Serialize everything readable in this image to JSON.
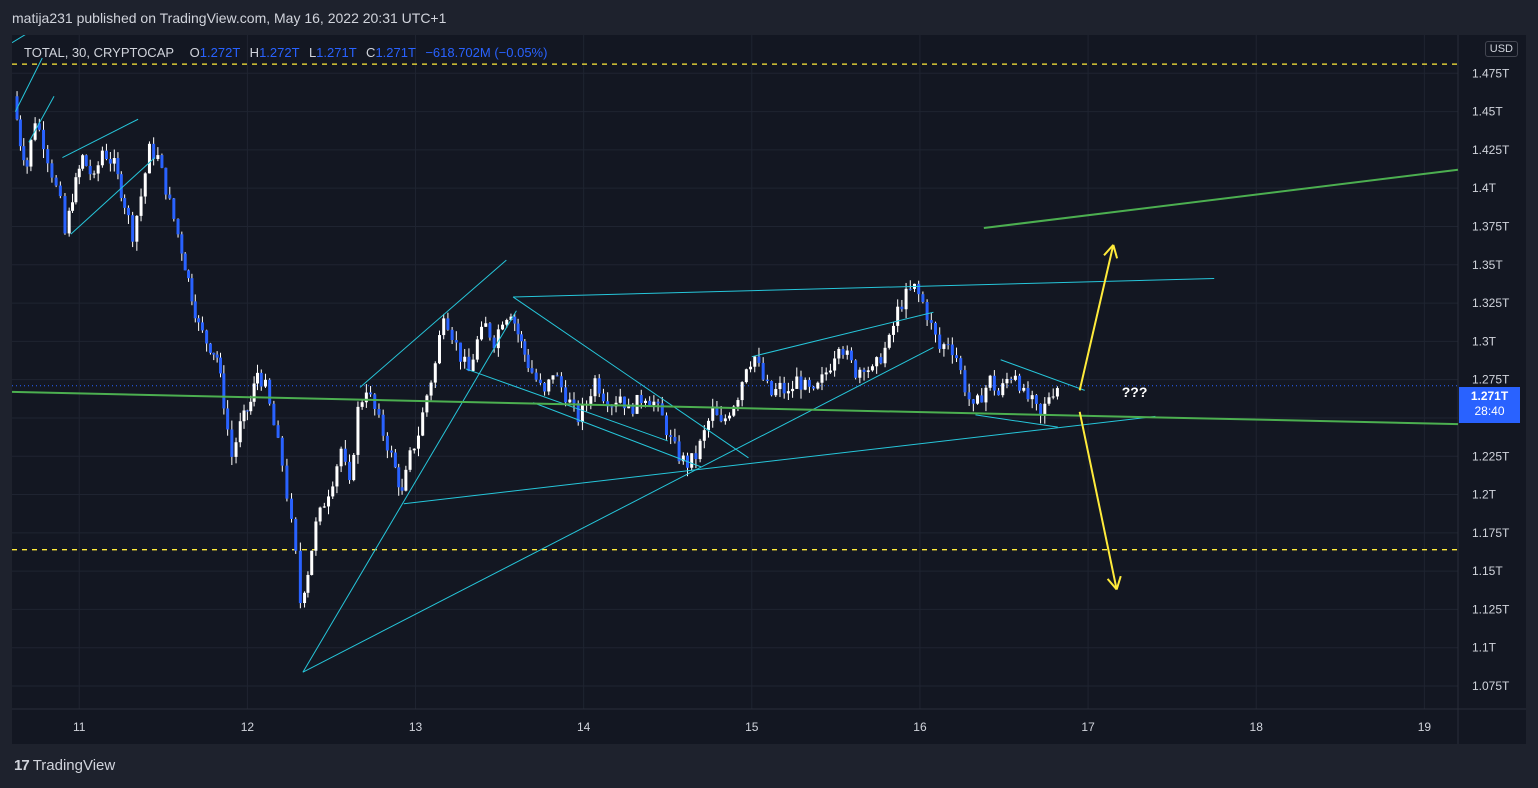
{
  "publish_line": "matija231 published on TradingView.com, May 16, 2022 20:31 UTC+1",
  "legend": {
    "symbol": "TOTAL, 30, CRYPTOCAP",
    "o_label": "O",
    "o_value": "1.272T",
    "h_label": "H",
    "h_value": "1.272T",
    "l_label": "L",
    "l_value": "1.271T",
    "c_label": "C",
    "c_value": "1.271T",
    "change": "−618.702M (−0.05%)"
  },
  "currency": "USD",
  "current_price": {
    "value": "1.271T",
    "countdown": "28:40"
  },
  "annotation": "???",
  "footer": {
    "logo": "17",
    "brand": "TradingView"
  },
  "colors": {
    "background": "#131722",
    "candle_body": "#2962ff",
    "candle_wick": "#ffffff",
    "trendline": "#26c6da",
    "green_line": "#4caf50",
    "yellow": "#ffeb3b",
    "price_label": "#2962ff"
  },
  "chart_data": {
    "type": "candlestick",
    "symbol": "TOTAL",
    "interval": "30",
    "exchange": "CRYPTOCAP",
    "x_ticks": [
      "11",
      "12",
      "13",
      "14",
      "15",
      "16",
      "17",
      "18",
      "19"
    ],
    "y_ticks": [
      "1.075T",
      "1.1T",
      "1.125T",
      "1.15T",
      "1.175T",
      "1.2T",
      "1.225T",
      "1.25T",
      "1.275T",
      "1.3T",
      "1.325T",
      "1.35T",
      "1.375T",
      "1.4T",
      "1.425T",
      "1.45T",
      "1.475T"
    ],
    "y_range": [
      1.06,
      1.5
    ],
    "x_range": [
      10.6,
      19.2
    ],
    "price_path": [
      [
        10.62,
        1.46
      ],
      [
        10.66,
        1.43
      ],
      [
        10.7,
        1.415
      ],
      [
        10.75,
        1.445
      ],
      [
        10.8,
        1.43
      ],
      [
        10.85,
        1.41
      ],
      [
        10.9,
        1.39
      ],
      [
        10.93,
        1.37
      ],
      [
        10.97,
        1.395
      ],
      [
        11.03,
        1.42
      ],
      [
        11.1,
        1.405
      ],
      [
        11.15,
        1.425
      ],
      [
        11.22,
        1.415
      ],
      [
        11.28,
        1.39
      ],
      [
        11.33,
        1.37
      ],
      [
        11.38,
        1.395
      ],
      [
        11.43,
        1.425
      ],
      [
        11.48,
        1.42
      ],
      [
        11.55,
        1.39
      ],
      [
        11.6,
        1.37
      ],
      [
        11.66,
        1.34
      ],
      [
        11.72,
        1.31
      ],
      [
        11.77,
        1.3
      ],
      [
        11.83,
        1.29
      ],
      [
        11.87,
        1.26
      ],
      [
        11.92,
        1.225
      ],
      [
        11.97,
        1.245
      ],
      [
        12.03,
        1.26
      ],
      [
        12.07,
        1.28
      ],
      [
        12.12,
        1.27
      ],
      [
        12.17,
        1.245
      ],
      [
        12.22,
        1.22
      ],
      [
        12.25,
        1.2
      ],
      [
        12.3,
        1.16
      ],
      [
        12.33,
        1.13
      ],
      [
        12.37,
        1.15
      ],
      [
        12.42,
        1.18
      ],
      [
        12.47,
        1.195
      ],
      [
        12.52,
        1.21
      ],
      [
        12.57,
        1.23
      ],
      [
        12.62,
        1.205
      ],
      [
        12.67,
        1.255
      ],
      [
        12.72,
        1.27
      ],
      [
        12.77,
        1.255
      ],
      [
        12.82,
        1.24
      ],
      [
        12.87,
        1.225
      ],
      [
        12.93,
        1.2
      ],
      [
        12.98,
        1.225
      ],
      [
        13.03,
        1.24
      ],
      [
        13.08,
        1.265
      ],
      [
        13.13,
        1.285
      ],
      [
        13.18,
        1.32
      ],
      [
        13.23,
        1.305
      ],
      [
        13.28,
        1.29
      ],
      [
        13.33,
        1.28
      ],
      [
        13.38,
        1.3
      ],
      [
        13.43,
        1.31
      ],
      [
        13.48,
        1.3
      ],
      [
        13.53,
        1.315
      ],
      [
        13.58,
        1.32
      ],
      [
        13.62,
        1.305
      ],
      [
        13.68,
        1.285
      ],
      [
        13.73,
        1.275
      ],
      [
        13.78,
        1.265
      ],
      [
        13.83,
        1.28
      ],
      [
        13.88,
        1.27
      ],
      [
        13.93,
        1.26
      ],
      [
        13.98,
        1.25
      ],
      [
        14.03,
        1.26
      ],
      [
        14.08,
        1.275
      ],
      [
        14.13,
        1.265
      ],
      [
        14.18,
        1.26
      ],
      [
        14.23,
        1.265
      ],
      [
        14.28,
        1.255
      ],
      [
        14.33,
        1.26
      ],
      [
        14.38,
        1.265
      ],
      [
        14.43,
        1.26
      ],
      [
        14.48,
        1.25
      ],
      [
        14.53,
        1.235
      ],
      [
        14.58,
        1.225
      ],
      [
        14.63,
        1.22
      ],
      [
        14.68,
        1.225
      ],
      [
        14.73,
        1.24
      ],
      [
        14.78,
        1.255
      ],
      [
        14.83,
        1.245
      ],
      [
        14.88,
        1.255
      ],
      [
        14.93,
        1.265
      ],
      [
        14.98,
        1.285
      ],
      [
        15.03,
        1.29
      ],
      [
        15.08,
        1.275
      ],
      [
        15.13,
        1.265
      ],
      [
        15.18,
        1.27
      ],
      [
        15.23,
        1.265
      ],
      [
        15.28,
        1.275
      ],
      [
        15.33,
        1.27
      ],
      [
        15.38,
        1.265
      ],
      [
        15.43,
        1.275
      ],
      [
        15.48,
        1.285
      ],
      [
        15.53,
        1.3
      ],
      [
        15.58,
        1.29
      ],
      [
        15.63,
        1.28
      ],
      [
        15.68,
        1.285
      ],
      [
        15.73,
        1.28
      ],
      [
        15.78,
        1.29
      ],
      [
        15.83,
        1.3
      ],
      [
        15.88,
        1.32
      ],
      [
        15.93,
        1.33
      ],
      [
        15.98,
        1.335
      ],
      [
        16.03,
        1.325
      ],
      [
        16.08,
        1.31
      ],
      [
        16.13,
        1.295
      ],
      [
        16.18,
        1.3
      ],
      [
        16.23,
        1.29
      ],
      [
        16.28,
        1.27
      ],
      [
        16.33,
        1.255
      ],
      [
        16.38,
        1.265
      ],
      [
        16.43,
        1.275
      ],
      [
        16.48,
        1.265
      ],
      [
        16.53,
        1.275
      ],
      [
        16.58,
        1.28
      ],
      [
        16.63,
        1.265
      ],
      [
        16.68,
        1.26
      ],
      [
        16.73,
        1.25
      ],
      [
        16.78,
        1.265
      ],
      [
        16.83,
        1.271
      ]
    ],
    "horizontal_levels": [
      1.481,
      1.164
    ],
    "current_price": 1.271
  }
}
